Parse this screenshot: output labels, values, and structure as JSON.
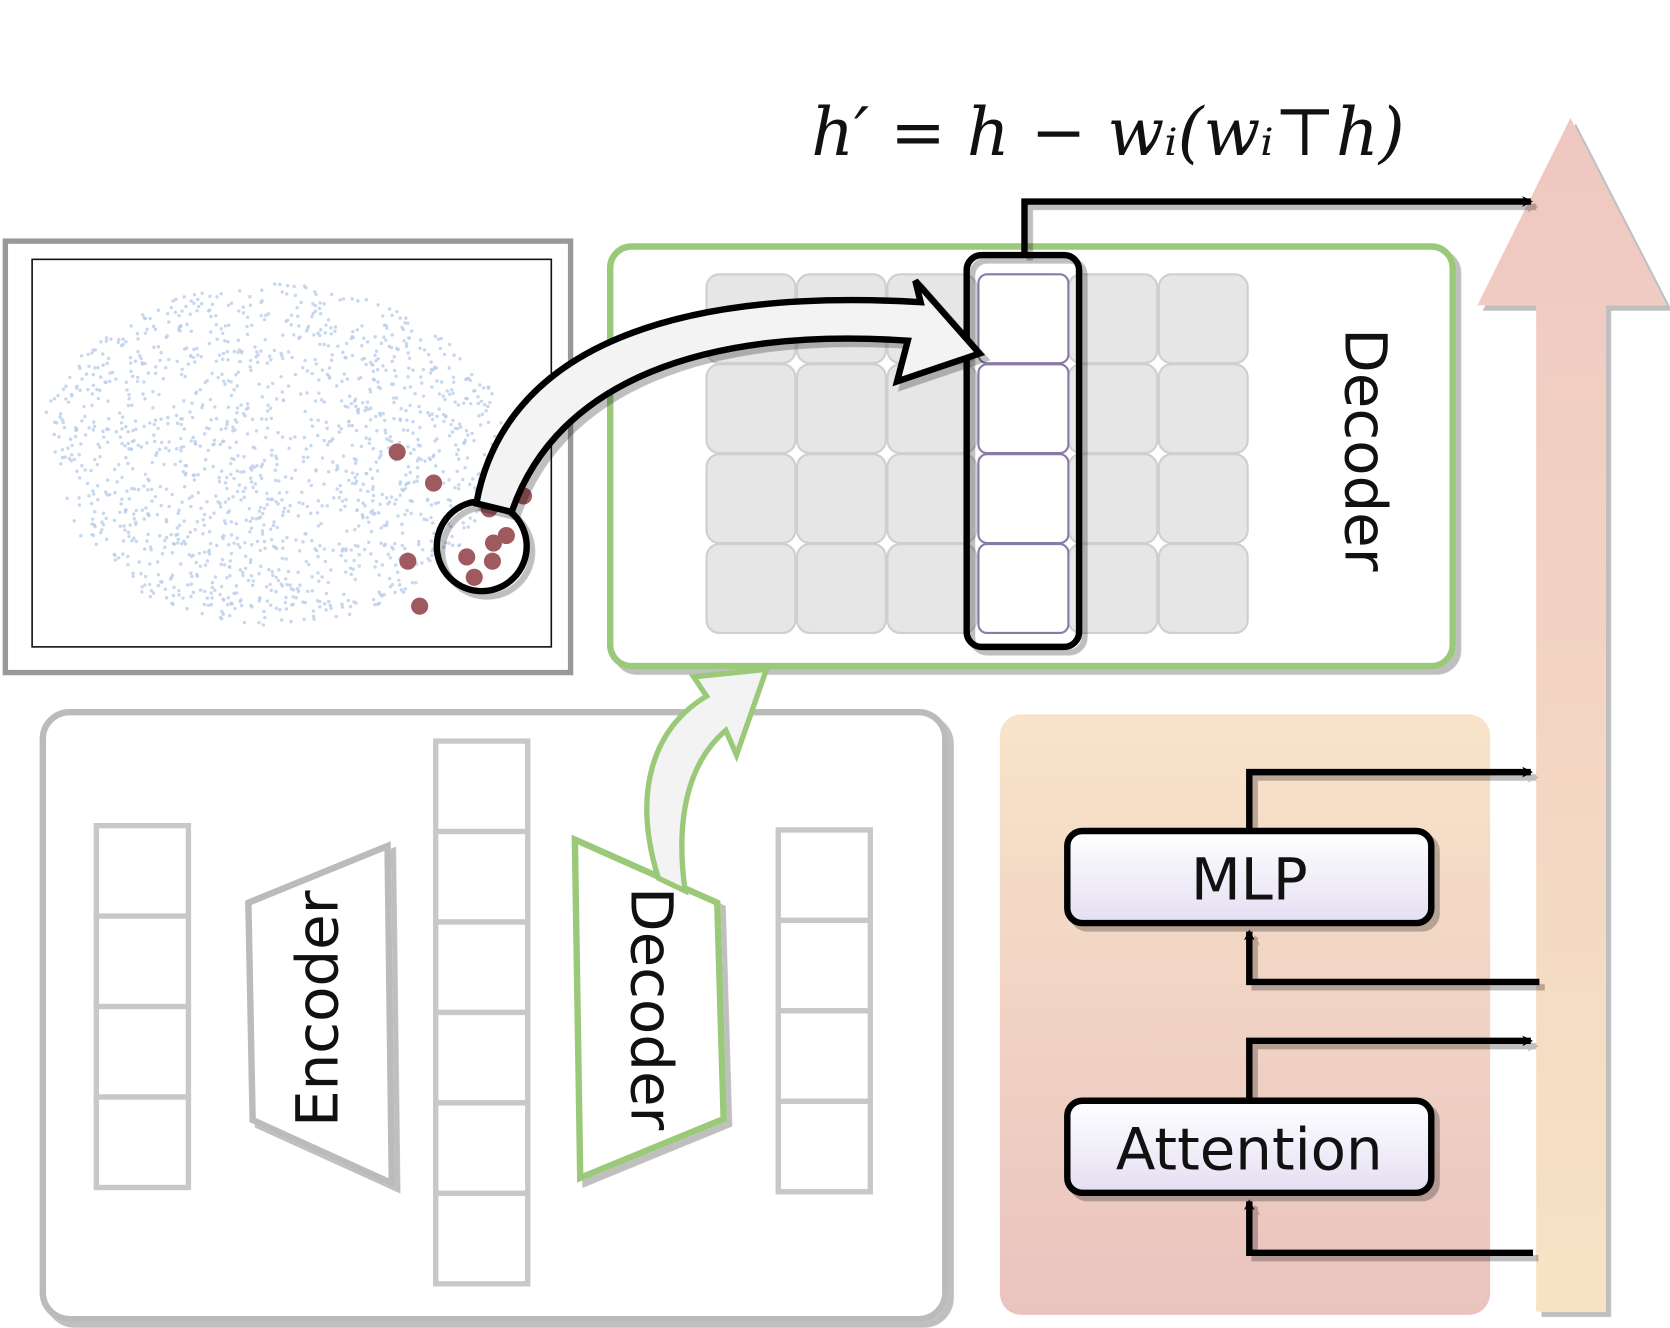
{
  "formula": "h′ = h − wᵢ(wᵢ⊤h)",
  "decoder_panel": {
    "label": "Decoder"
  },
  "autoencoder": {
    "encoder_label": "Encoder",
    "decoder_label": "Decoder"
  },
  "transformer_block": {
    "mlp_label": "MLP",
    "attention_label": "Attention"
  }
}
